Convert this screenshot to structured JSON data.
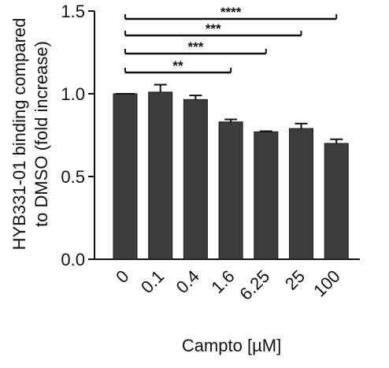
{
  "chart_data": {
    "type": "bar",
    "categories": [
      "0",
      "0.1",
      "0.4",
      "1.6",
      "6.25",
      "25",
      "100"
    ],
    "values": [
      1.0,
      1.01,
      0.965,
      0.83,
      0.77,
      0.79,
      0.7
    ],
    "errors": [
      0.0,
      0.045,
      0.025,
      0.015,
      0.004,
      0.03,
      0.025
    ],
    "xlabel": "Campto [µM]",
    "ylabel_lines": [
      "HYB331-01 binding compared",
      "to DMSO (fold increase)"
    ],
    "ylim": [
      0.0,
      1.5
    ],
    "yticks": [
      "0.0",
      "0.5",
      "1.0",
      "1.5"
    ],
    "yticks_values": [
      0.0,
      0.5,
      1.0,
      1.5
    ],
    "bar_color": "#3c3c3c",
    "significance": [
      {
        "from": "0",
        "to": "1.6",
        "label": "**"
      },
      {
        "from": "0",
        "to": "6.25",
        "label": "***"
      },
      {
        "from": "0",
        "to": "25",
        "label": "***"
      },
      {
        "from": "0",
        "to": "100",
        "label": "****"
      }
    ],
    "grid": false,
    "legend": "none"
  }
}
